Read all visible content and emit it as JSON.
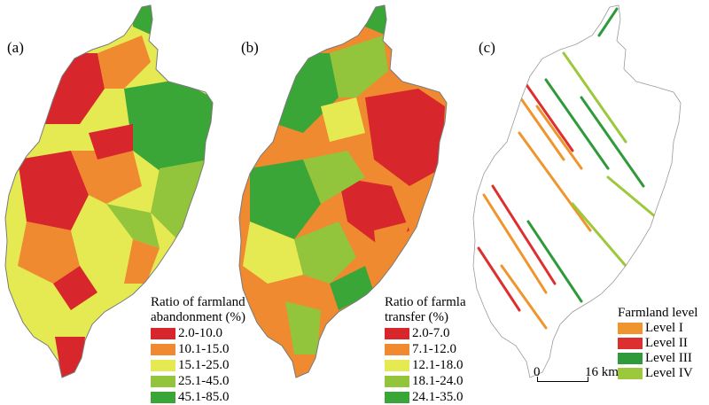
{
  "panels": [
    {
      "label": "(a)",
      "legend": {
        "title_line1": "Ratio of farmland",
        "title_line2": "abandonment (%)",
        "items": [
          {
            "label": "2.0-10.0",
            "color": "#d7262c"
          },
          {
            "label": "10.1-15.0",
            "color": "#f08a30"
          },
          {
            "label": "15.1-25.0",
            "color": "#e6ea52"
          },
          {
            "label": "25.1-45.0",
            "color": "#92c53c"
          },
          {
            "label": "45.1-85.0",
            "color": "#3aa637"
          }
        ]
      }
    },
    {
      "label": "(b)",
      "legend": {
        "title_line1": "Ratio of farmland",
        "title_line2": "transfer (%)",
        "items": [
          {
            "label": "2.0-7.0",
            "color": "#d7262c"
          },
          {
            "label": "7.1-12.0",
            "color": "#f08a30"
          },
          {
            "label": "12.1-18.0",
            "color": "#e6ea52"
          },
          {
            "label": "18.1-24.0",
            "color": "#92c53c"
          },
          {
            "label": "24.1-35.0",
            "color": "#3aa637"
          }
        ]
      }
    },
    {
      "label": "(c)",
      "legend": {
        "title_line1": "Farmland level",
        "items": [
          {
            "label": "Level I",
            "color": "#f0952e"
          },
          {
            "label": "Level II",
            "color": "#dd2f2f"
          },
          {
            "label": "Level III",
            "color": "#2f9a3a"
          },
          {
            "label": "Level IV",
            "color": "#9cc83c"
          }
        ]
      },
      "scalebar": {
        "start": "0",
        "end": "16 km"
      }
    }
  ]
}
